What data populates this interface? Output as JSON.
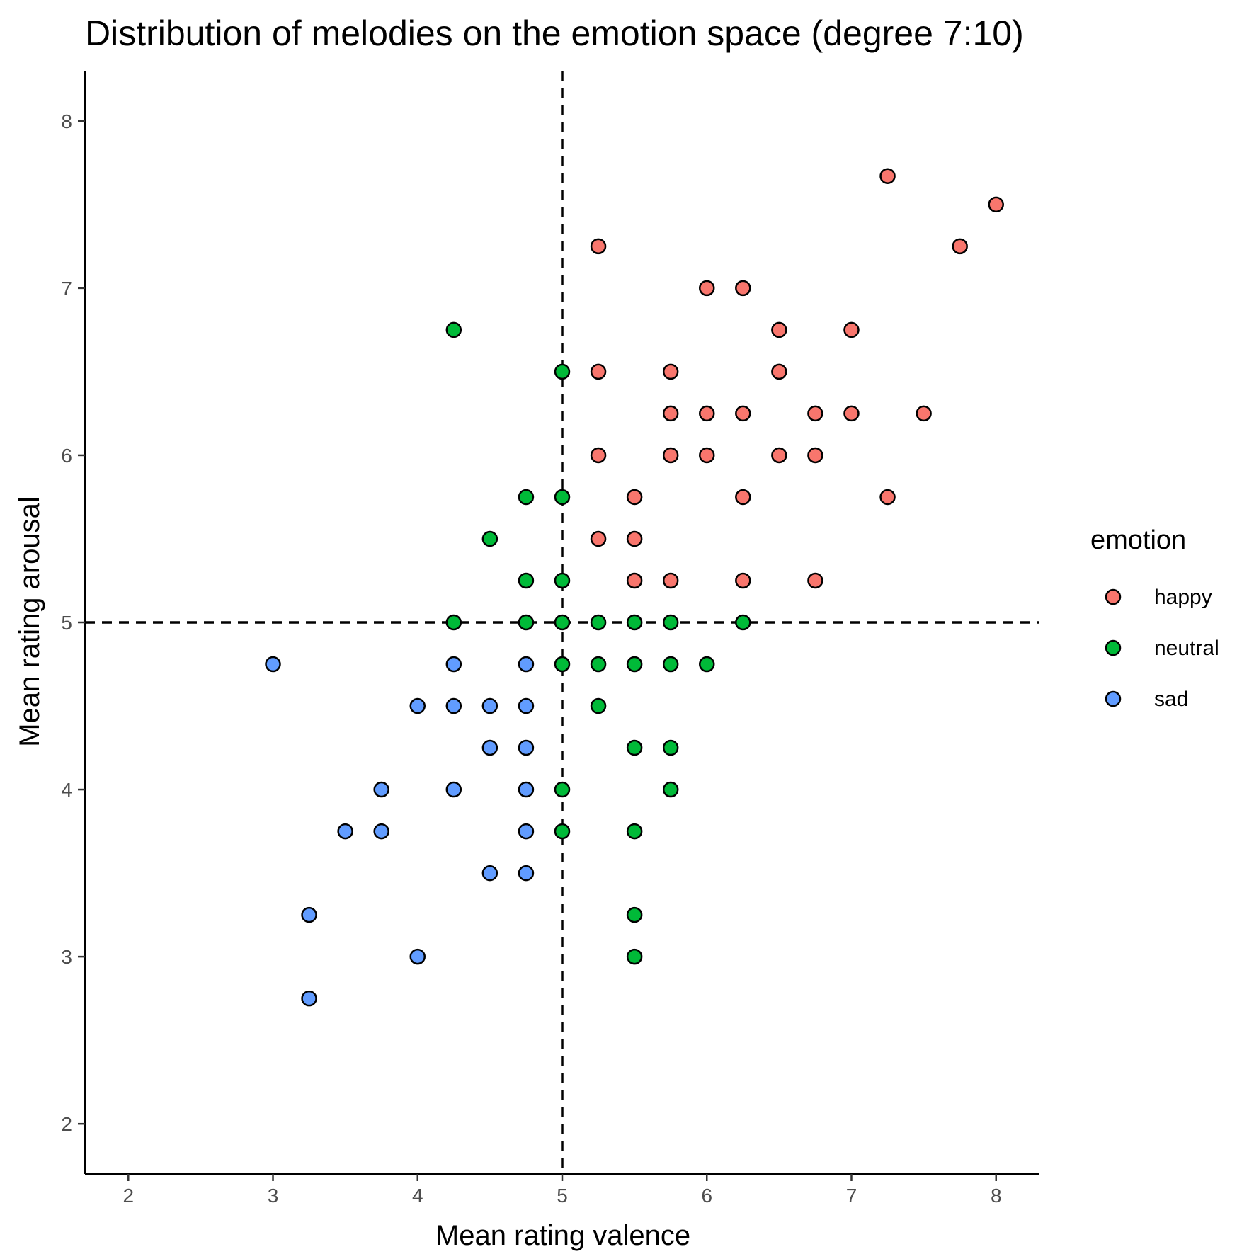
{
  "chart_data": {
    "type": "scatter",
    "title": "Distribution of melodies on the emotion space (degree 7:10)",
    "xlabel": "Mean rating valence",
    "ylabel": "Mean rating arousal",
    "xlim": [
      1.7,
      8.3
    ],
    "ylim": [
      1.7,
      8.3
    ],
    "x_ticks": [
      2,
      3,
      4,
      5,
      6,
      7,
      8
    ],
    "y_ticks": [
      2,
      3,
      4,
      5,
      6,
      7,
      8
    ],
    "grid": false,
    "reference_lines": {
      "x": 5,
      "y": 5,
      "style": "dashed"
    },
    "legend": {
      "title": "emotion",
      "position": "right"
    },
    "series": [
      {
        "name": "happy",
        "color": "#F8766D",
        "points": [
          [
            7.25,
            7.67
          ],
          [
            8.0,
            7.5
          ],
          [
            5.25,
            7.25
          ],
          [
            7.75,
            7.25
          ],
          [
            6.0,
            7.0
          ],
          [
            6.25,
            7.0
          ],
          [
            6.5,
            6.75
          ],
          [
            7.0,
            6.75
          ],
          [
            5.25,
            6.5
          ],
          [
            5.75,
            6.5
          ],
          [
            6.5,
            6.5
          ],
          [
            5.75,
            6.25
          ],
          [
            6.0,
            6.25
          ],
          [
            6.25,
            6.25
          ],
          [
            6.75,
            6.25
          ],
          [
            7.0,
            6.25
          ],
          [
            7.5,
            6.25
          ],
          [
            5.25,
            6.0
          ],
          [
            5.75,
            6.0
          ],
          [
            6.0,
            6.0
          ],
          [
            6.5,
            6.0
          ],
          [
            6.75,
            6.0
          ],
          [
            5.5,
            5.75
          ],
          [
            6.25,
            5.75
          ],
          [
            7.25,
            5.75
          ],
          [
            5.25,
            5.5
          ],
          [
            5.5,
            5.5
          ],
          [
            5.5,
            5.25
          ],
          [
            5.75,
            5.25
          ],
          [
            6.25,
            5.25
          ],
          [
            6.75,
            5.25
          ]
        ]
      },
      {
        "name": "neutral",
        "color": "#00BA38",
        "points": [
          [
            4.25,
            6.75
          ],
          [
            5.0,
            6.5
          ],
          [
            4.75,
            5.75
          ],
          [
            5.0,
            5.75
          ],
          [
            4.5,
            5.5
          ],
          [
            4.75,
            5.25
          ],
          [
            5.0,
            5.25
          ],
          [
            4.25,
            5.0
          ],
          [
            4.75,
            5.0
          ],
          [
            5.0,
            5.0
          ],
          [
            5.25,
            5.0
          ],
          [
            5.5,
            5.0
          ],
          [
            5.75,
            5.0
          ],
          [
            6.25,
            5.0
          ],
          [
            5.0,
            4.75
          ],
          [
            5.25,
            4.75
          ],
          [
            5.5,
            4.75
          ],
          [
            5.75,
            4.75
          ],
          [
            6.0,
            4.75
          ],
          [
            5.25,
            4.5
          ],
          [
            5.5,
            4.25
          ],
          [
            5.75,
            4.25
          ],
          [
            5.0,
            4.0
          ],
          [
            5.75,
            4.0
          ],
          [
            5.0,
            3.75
          ],
          [
            5.5,
            3.75
          ],
          [
            5.5,
            3.25
          ],
          [
            5.5,
            3.0
          ]
        ]
      },
      {
        "name": "sad",
        "color": "#619CFF",
        "points": [
          [
            3.0,
            4.75
          ],
          [
            4.25,
            4.75
          ],
          [
            4.75,
            4.75
          ],
          [
            4.0,
            4.5
          ],
          [
            4.25,
            4.5
          ],
          [
            4.5,
            4.5
          ],
          [
            4.75,
            4.5
          ],
          [
            4.5,
            4.25
          ],
          [
            4.75,
            4.25
          ],
          [
            3.75,
            4.0
          ],
          [
            4.25,
            4.0
          ],
          [
            4.75,
            4.0
          ],
          [
            3.5,
            3.75
          ],
          [
            3.75,
            3.75
          ],
          [
            4.75,
            3.75
          ],
          [
            4.5,
            3.5
          ],
          [
            4.75,
            3.5
          ],
          [
            3.25,
            3.25
          ],
          [
            4.0,
            3.0
          ],
          [
            3.25,
            2.75
          ]
        ]
      }
    ]
  }
}
